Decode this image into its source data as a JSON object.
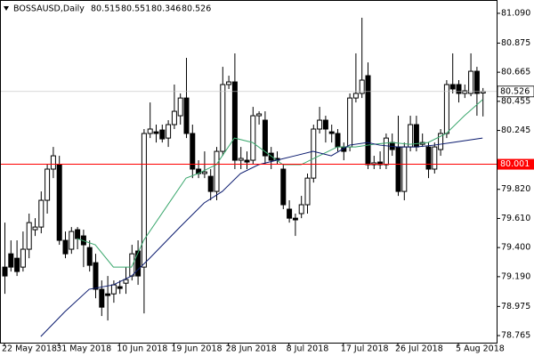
{
  "chart_data": {
    "type": "candlestick",
    "title": "BOSSAUSD,Daily",
    "categories": [
      "22 May 2018",
      null,
      null,
      null,
      null,
      null,
      null,
      null,
      null,
      "31 May 2018",
      null,
      null,
      null,
      null,
      null,
      null,
      null,
      null,
      null,
      "10 Jun 2018",
      null,
      null,
      null,
      null,
      null,
      null,
      null,
      null,
      "19 Jun 2018",
      null,
      null,
      null,
      null,
      null,
      null,
      null,
      null,
      "28 Jun 2018",
      null,
      null,
      null,
      null,
      null,
      null,
      null,
      null,
      null,
      "8 Jul 2018",
      null,
      null,
      null,
      null,
      null,
      null,
      null,
      null,
      "17 Jul 2018",
      null,
      null,
      null,
      null,
      null,
      null,
      null,
      null,
      "26 Jul 2018",
      null,
      null,
      null,
      null,
      null,
      null,
      null,
      null,
      null,
      "5 Aug 2018",
      null,
      null,
      null,
      null
    ],
    "open": [
      79.259,
      79.355,
      79.323,
      79.259,
      79.388,
      79.529,
      79.548,
      79.741,
      79.966,
      79.998,
      79.452,
      79.388,
      79.529,
      79.484,
      79.4,
      79.291,
      79.099,
      79.066,
      79.066,
      79.118,
      79.143,
      79.195,
      79.375,
      79.259,
      80.223,
      80.235,
      80.248,
      80.19,
      80.287,
      80.351,
      80.479,
      80.223,
      79.966,
      79.934,
      79.914,
      79.805,
      80.094,
      80.576,
      80.595,
      80.03,
      80.03,
      80.03,
      80.351,
      80.319,
      80.081,
      80.043,
      79.966,
      79.677,
      79.612,
      79.645,
      79.709,
      79.901,
      80.255,
      80.319,
      80.235,
      80.223,
      80.126,
      80.126,
      80.479,
      80.512,
      80.64,
      79.998,
      80.017,
      79.998,
      80.158,
      80.126,
      79.805,
      80.126,
      80.287,
      80.145,
      80.126,
      79.966,
      80.107,
      80.223,
      80.576,
      80.576,
      80.512,
      80.512,
      80.672,
      80.515
    ],
    "high": [
      79.58,
      79.452,
      79.452,
      79.516,
      79.645,
      79.612,
      79.805,
      79.998,
      80.126,
      80.062,
      79.516,
      79.548,
      79.548,
      79.529,
      79.452,
      79.355,
      79.163,
      79.195,
      79.163,
      79.163,
      79.259,
      79.42,
      79.452,
      80.255,
      80.447,
      80.287,
      80.287,
      80.319,
      80.576,
      80.512,
      80.769,
      80.287,
      80.03,
      80.094,
      79.966,
      80.126,
      80.704,
      80.64,
      80.801,
      80.126,
      80.094,
      80.415,
      80.383,
      80.383,
      80.126,
      80.094,
      79.998,
      79.741,
      79.645,
      79.773,
      79.934,
      80.287,
      80.415,
      80.351,
      80.287,
      80.255,
      80.158,
      80.512,
      80.801,
      81.058,
      80.736,
      80.062,
      80.094,
      80.223,
      80.223,
      80.351,
      80.158,
      80.351,
      80.351,
      80.223,
      80.158,
      80.158,
      80.255,
      80.608,
      80.801,
      80.608,
      80.576,
      80.801,
      80.704,
      80.551
    ],
    "low": [
      79.066,
      79.227,
      79.195,
      79.227,
      79.323,
      79.484,
      79.503,
      79.645,
      79.901,
      79.42,
      79.323,
      79.355,
      79.388,
      79.259,
      79.227,
      79.034,
      78.906,
      78.874,
      79.002,
      79.066,
      79.066,
      79.163,
      79.131,
      78.925,
      80.19,
      80.158,
      80.158,
      80.126,
      80.255,
      80.287,
      80.19,
      79.901,
      79.901,
      79.901,
      79.741,
      79.741,
      80.062,
      80.544,
      79.966,
      79.966,
      79.966,
      79.998,
      80.287,
      79.998,
      79.966,
      79.998,
      79.677,
      79.58,
      79.484,
      79.612,
      79.645,
      79.869,
      80.223,
      80.158,
      80.158,
      80.094,
      80.03,
      80.094,
      80.447,
      80.479,
      79.966,
      79.966,
      79.966,
      79.966,
      80.062,
      79.773,
      79.741,
      80.094,
      80.094,
      80.126,
      79.901,
      79.934,
      80.062,
      80.19,
      80.512,
      80.447,
      80.479,
      80.492,
      80.351,
      80.346
    ],
    "close": [
      79.195,
      79.259,
      79.227,
      79.388,
      79.58,
      79.548,
      79.741,
      79.966,
      80.062,
      79.452,
      79.355,
      79.516,
      79.465,
      79.42,
      79.272,
      79.099,
      78.97,
      79.054,
      79.131,
      79.105,
      79.169,
      79.355,
      79.195,
      80.223,
      80.255,
      80.223,
      80.184,
      80.287,
      80.383,
      80.479,
      80.223,
      79.966,
      79.934,
      79.946,
      79.805,
      80.094,
      80.576,
      80.595,
      80.03,
      80.043,
      80.017,
      80.351,
      80.364,
      80.062,
      80.03,
      80.03,
      79.709,
      79.612,
      79.6,
      79.709,
      79.901,
      80.255,
      80.319,
      80.255,
      80.223,
      80.126,
      80.094,
      80.479,
      80.512,
      80.608,
      79.998,
      80.011,
      79.998,
      80.19,
      80.107,
      79.805,
      80.126,
      80.287,
      80.126,
      80.158,
      79.966,
      80.126,
      80.223,
      80.576,
      80.544,
      80.512,
      80.531,
      80.672,
      80.512,
      80.526
    ],
    "up_color": "#ffffff",
    "down_color": "#000000",
    "edge_color": "#000000",
    "lines": [
      {
        "color": "#3aa76d",
        "x": [
          12,
          15,
          18,
          21,
          23,
          27,
          30,
          32,
          35,
          38,
          41,
          43,
          46,
          49,
          52,
          55,
          58,
          61,
          64,
          67,
          70,
          73,
          76,
          79
        ],
        "values": [
          79.465,
          79.42,
          79.259,
          79.259,
          79.452,
          79.709,
          79.901,
          79.934,
          79.998,
          80.19,
          80.158,
          80.094,
          79.998,
          79.998,
          80.062,
          80.126,
          80.126,
          80.145,
          80.158,
          80.145,
          80.158,
          80.223,
          80.351,
          80.467
        ]
      },
      {
        "color": "#0a1a6e",
        "x": [
          6,
          10,
          14,
          18,
          21,
          24,
          29,
          33,
          36,
          39,
          42,
          45,
          48,
          51,
          54,
          57,
          60,
          62,
          65,
          68,
          71,
          74,
          79
        ],
        "values": [
          78.758,
          78.938,
          79.099,
          79.131,
          79.195,
          79.323,
          79.548,
          79.722,
          79.805,
          79.934,
          79.998,
          80.03,
          80.062,
          80.094,
          80.062,
          80.139,
          80.158,
          80.139,
          80.126,
          80.126,
          80.139,
          80.158,
          80.19
        ]
      }
    ],
    "hline": {
      "value": 80.001,
      "color": "#ff0000"
    },
    "ylim": [
      78.714,
      81.186
    ],
    "yticks": [
      {
        "value": 81.09,
        "label": "81.090"
      },
      80.875,
      80.665,
      80.455,
      80.245,
      {
        "value": 79.82,
        "label": "79.820"
      },
      {
        "value": 79.61,
        "label": "79.610"
      },
      {
        "value": 79.4,
        "label": "79.400"
      },
      {
        "value": 79.19,
        "label": "79.190"
      },
      78.975,
      78.765
    ],
    "grid": false
  }
}
